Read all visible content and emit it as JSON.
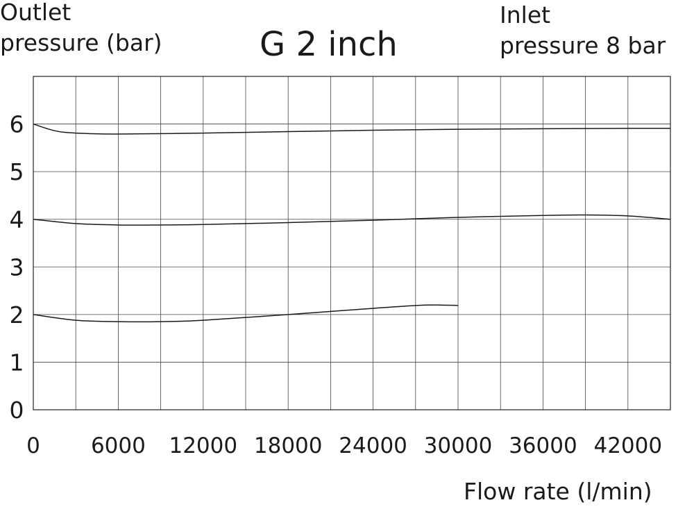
{
  "chart_data": {
    "type": "line",
    "title": "G 2 inch",
    "ylabel_lines": [
      "Outlet",
      "pressure (bar)"
    ],
    "annotation_lines": [
      "Inlet",
      "pressure 8 bar"
    ],
    "xlabel": "Flow rate (l/min)",
    "xlim": [
      0,
      45000
    ],
    "ylim": [
      0,
      7
    ],
    "x_ticks": [
      0,
      6000,
      12000,
      18000,
      24000,
      30000,
      36000,
      42000
    ],
    "x_tick_labels": [
      "0",
      "6000",
      "12000",
      "18000",
      "24000",
      "30000",
      "36000",
      "42000"
    ],
    "y_ticks": [
      0,
      1,
      2,
      3,
      4,
      5,
      6
    ],
    "y_tick_labels": [
      "0",
      "1",
      "2",
      "3",
      "4",
      "5",
      "6"
    ],
    "grid": true,
    "grid_x_step": 3000,
    "grid_y_step": 1,
    "line_color": "#1a1a1a",
    "series": [
      {
        "x": [
          0,
          1500,
          3000,
          6000,
          12000,
          18000,
          24000,
          30000,
          36000,
          42000,
          45000
        ],
        "y": [
          6.0,
          5.86,
          5.81,
          5.79,
          5.81,
          5.84,
          5.87,
          5.89,
          5.9,
          5.91,
          5.91
        ]
      },
      {
        "x": [
          0,
          3000,
          6000,
          9000,
          12000,
          18000,
          24000,
          30000,
          36000,
          39000,
          42000,
          45000
        ],
        "y": [
          4.0,
          3.91,
          3.88,
          3.88,
          3.89,
          3.93,
          3.98,
          4.04,
          4.08,
          4.09,
          4.07,
          4.0
        ]
      },
      {
        "x": [
          0,
          3000,
          6000,
          9000,
          12000,
          18000,
          24000,
          27000,
          28500,
          30000
        ],
        "y": [
          2.0,
          1.88,
          1.85,
          1.85,
          1.88,
          2.0,
          2.13,
          2.19,
          2.2,
          2.19
        ]
      }
    ]
  }
}
